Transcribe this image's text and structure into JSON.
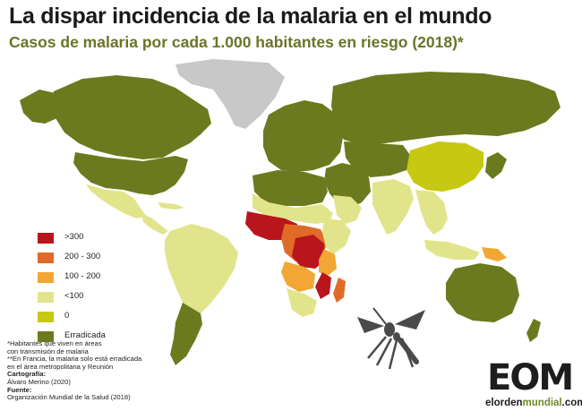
{
  "header": {
    "title": "La dispar incidencia de la malaria en el mundo",
    "subtitle": "Casos de malaria por cada 1.000 habitantes en riesgo (2018)*"
  },
  "legend": {
    "items": [
      {
        "label": ">300",
        "color": "#b8151d"
      },
      {
        "label": "200 - 300",
        "color": "#e06b29"
      },
      {
        "label": "100 - 200",
        "color": "#f2a734"
      },
      {
        "label": "<100",
        "color": "#e2e48b"
      },
      {
        "label": "0",
        "color": "#c7c812"
      },
      {
        "label": "Erradicada",
        "color": "#6b7a1e"
      }
    ]
  },
  "colors": {
    "eradicated": "#6b7a1e",
    "zero": "#c7c812",
    "low": "#e2e48b",
    "mid": "#f2a734",
    "high": "#e06b29",
    "very_high": "#b8151d",
    "no_data": "#c8c8c8",
    "title_accent": "#6b7428"
  },
  "notes": {
    "note1": "*Habitantes que viven en áreas",
    "note2": "con transmisión de malaria",
    "note3": "**En Francia, la malaria solo está erradicada",
    "note4": "en el área metropolitana y Reunión",
    "cartography_label": "Cartografía:",
    "cartography_value": "Álvaro Merino (2020)",
    "source_label": "Fuente:",
    "source_value": "Organización Mundial de la Salud (2018)"
  },
  "logo": {
    "mark": "EOM",
    "text_a": "elorden",
    "text_b": "mundial",
    "text_c": ".com"
  },
  "icons": {
    "mosquito": "mosquito-icon"
  }
}
